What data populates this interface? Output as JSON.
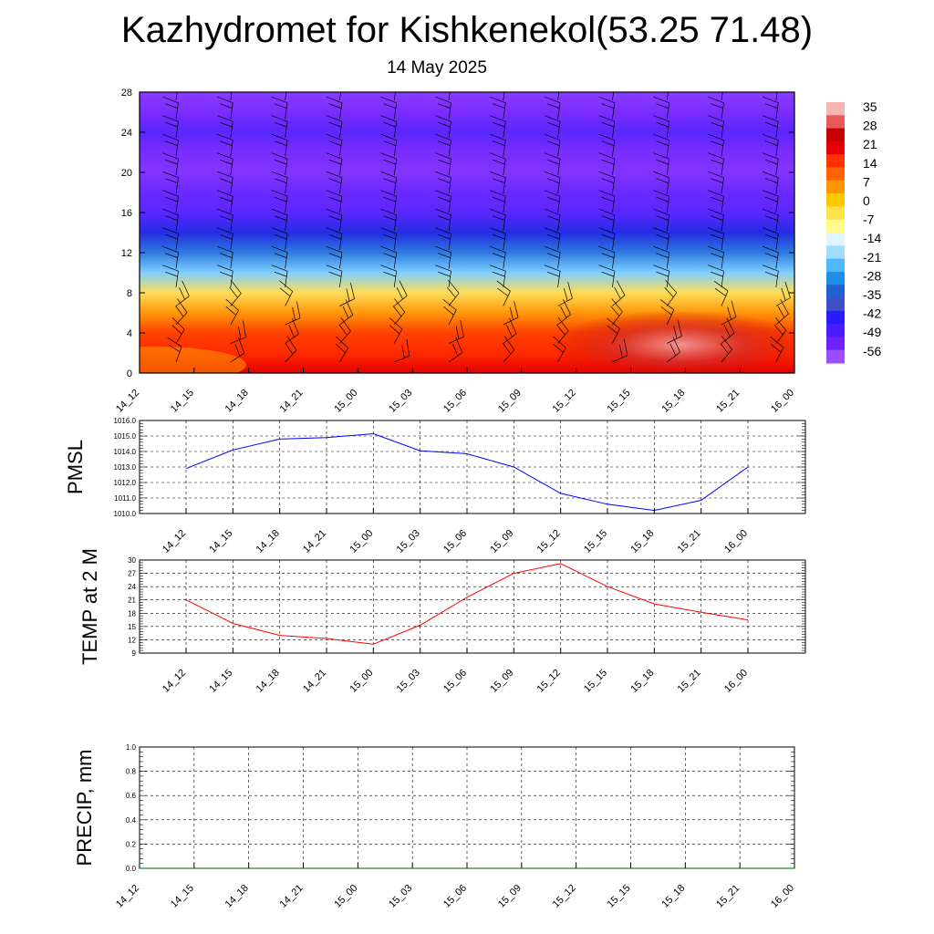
{
  "header": {
    "title": "Kazhydromet for Kishkenekol(53.25 71.48)",
    "date": "14 May 2025"
  },
  "chart_data": [
    {
      "type": "heatmap",
      "title": "Kazhydromet for Kishkenekol(53.25 71.48)",
      "subtitle": "14 May 2025",
      "x_labels": [
        "14_12",
        "14_15",
        "14_18",
        "14_21",
        "15_00",
        "15_03",
        "15_06",
        "15_09",
        "15_12",
        "15_15",
        "15_18",
        "15_21",
        "16_00"
      ],
      "y_ticks": [
        0,
        4,
        8,
        12,
        16,
        20,
        24,
        28
      ],
      "ylim": [
        0,
        28
      ],
      "levels": [
        0,
        4,
        8,
        12,
        16,
        20,
        24,
        28
      ],
      "temperature_profile": [
        23,
        20,
        18,
        8,
        -5,
        -18,
        -30,
        -42,
        -52,
        -54,
        -58,
        -56,
        -52,
        -56,
        -60
      ],
      "colorbar": {
        "labels": [
          "35",
          "28",
          "21",
          "14",
          "7",
          "0",
          "-7",
          "-14",
          "-21",
          "-28",
          "-35",
          "-42",
          "-49",
          "-56"
        ],
        "colors": [
          "#f5b5b5",
          "#ea5a5a",
          "#c80000",
          "#e60000",
          "#ff3200",
          "#ff6400",
          "#ff9600",
          "#ffc800",
          "#ffe34a",
          "#fffb8c",
          "#dff5ff",
          "#a0dcff",
          "#50b8ff",
          "#1e8fe6",
          "#2060d0",
          "#3c4ec8",
          "#2a1aff",
          "#4a1cff",
          "#6e20ff",
          "#9a4cff"
        ]
      },
      "wind_barbs": "black"
    },
    {
      "type": "line",
      "ylabel": "PMSL",
      "categories": [
        "14_12",
        "14_15",
        "14_18",
        "14_21",
        "15_00",
        "15_03",
        "15_06",
        "15_09",
        "15_12",
        "15_15",
        "15_18",
        "15_21",
        "16_00"
      ],
      "yticks": [
        "1010.0",
        "1011.0",
        "1012.0",
        "1013.0",
        "1014.0",
        "1015.0",
        "1016.0"
      ],
      "ylim": [
        1010,
        1016
      ],
      "series": [
        {
          "color": "#0000ff",
          "values": [
            1012.9,
            1014.1,
            1014.8,
            1014.9,
            1015.15,
            1014.05,
            1013.85,
            1013.0,
            1011.3,
            1010.6,
            1010.2,
            1010.85,
            1013.0
          ]
        }
      ],
      "grid": true
    },
    {
      "type": "line",
      "ylabel": "TEMP at 2 M",
      "categories": [
        "14_12",
        "14_15",
        "14_18",
        "14_21",
        "15_00",
        "15_03",
        "15_06",
        "15_09",
        "15_12",
        "15_15",
        "15_18",
        "15_21",
        "16_00"
      ],
      "yticks": [
        "9",
        "12",
        "15",
        "18",
        "21",
        "24",
        "27",
        "30"
      ],
      "ylim": [
        9,
        30
      ],
      "series": [
        {
          "color": "#ff0000",
          "values": [
            21.0,
            15.7,
            13.0,
            12.3,
            11.0,
            15.3,
            21.6,
            27.0,
            29.2,
            24.0,
            20.1,
            18.2,
            16.5
          ]
        }
      ],
      "grid": true
    },
    {
      "type": "line",
      "ylabel": "PRECIP, mm",
      "categories": [
        "14_12",
        "14_15",
        "14_18",
        "14_21",
        "15_00",
        "15_03",
        "15_06",
        "15_09",
        "15_12",
        "15_15",
        "15_18",
        "15_21",
        "16_00"
      ],
      "yticks": [
        "0.0",
        "0.2",
        "0.4",
        "0.6",
        "0.8",
        "1.0"
      ],
      "ylim": [
        0,
        1
      ],
      "series": [
        {
          "color": "#006400",
          "values": [
            0,
            0,
            0,
            0,
            0,
            0,
            0,
            0,
            0,
            0,
            0,
            0,
            0
          ]
        }
      ],
      "grid": true
    }
  ]
}
